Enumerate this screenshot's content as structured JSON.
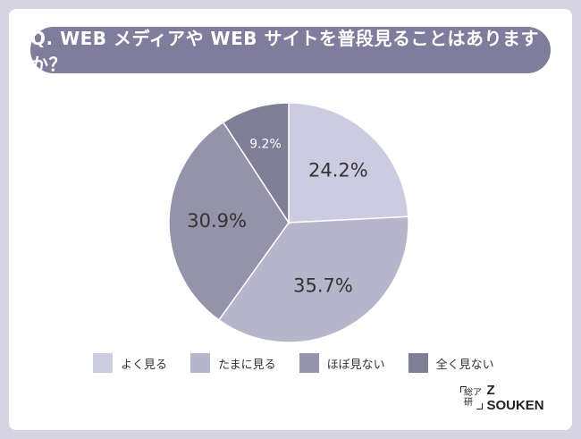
{
  "title": "Q. WEB メディアや WEB サイトを普段見ることはありますか？",
  "chart_data": {
    "type": "pie",
    "title": "Q. WEB メディアや WEB サイトを普段見ることはありますか？",
    "legend_position": "bottom",
    "start_angle_deg": 0,
    "direction": "clockwise",
    "slices": [
      {
        "label": "よく見る",
        "value": 24.2,
        "display": "24.2%",
        "color": "#cdcbe0"
      },
      {
        "label": "たまに見る",
        "value": 35.7,
        "display": "35.7%",
        "color": "#b7b5ca"
      },
      {
        "label": "ほぼ見ない",
        "value": 30.9,
        "display": "30.9%",
        "color": "#9593aa"
      },
      {
        "label": "全く見ない",
        "value": 9.2,
        "display": "9.2%",
        "color": "#807e96"
      }
    ]
  },
  "logo": {
    "mark_line1": "総ア",
    "mark_line2": "研",
    "text": "Z SOUKEN"
  }
}
